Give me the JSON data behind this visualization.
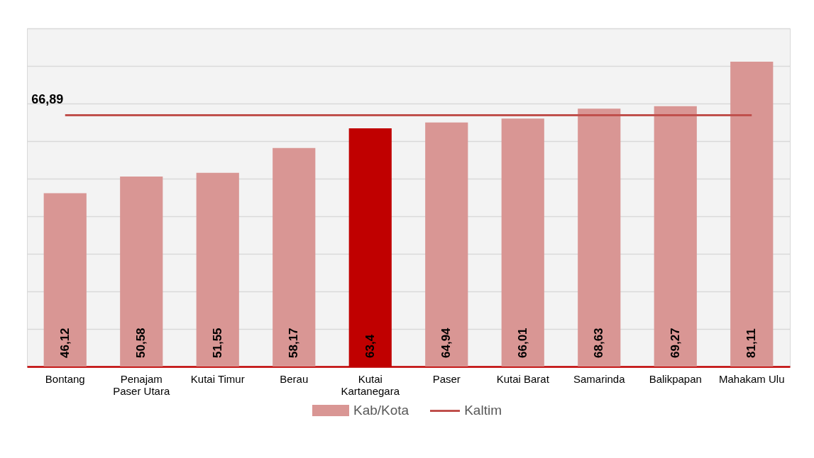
{
  "chart_data": {
    "type": "bar",
    "categories": [
      "Bontang",
      "Penajam Paser Utara",
      "Kutai Timur",
      "Berau",
      "Kutai Kartanegara",
      "Paser",
      "Kutai Barat",
      "Samarinda",
      "Balikpapan",
      "Mahakam Ulu"
    ],
    "series": [
      {
        "name": "Kab/Kota",
        "color": "#d99694",
        "colors": [
          "#d99694",
          "#d99694",
          "#d99694",
          "#d99694",
          "#c00000",
          "#d99694",
          "#d99694",
          "#d99694",
          "#d99694",
          "#d99694"
        ],
        "values": [
          46.12,
          50.58,
          51.55,
          58.17,
          63.4,
          64.94,
          66.01,
          68.63,
          69.27,
          81.11
        ],
        "value_labels": [
          "46,12",
          "50,58",
          "51,55",
          "58,17",
          "63,4",
          "64,94",
          "66,01",
          "68,63",
          "69,27",
          "81,11"
        ]
      },
      {
        "name": "Kaltim",
        "type": "line",
        "color": "#c0504d",
        "values": [
          66.89,
          66.89,
          66.89,
          66.89,
          66.89,
          66.89,
          66.89,
          66.89,
          66.89,
          66.89
        ],
        "value_labels": [
          "66,89",
          null,
          null,
          null,
          null,
          null,
          null,
          null,
          null,
          null
        ]
      }
    ],
    "ylim": [
      0,
      90
    ],
    "yticks": [
      0,
      10,
      20,
      30,
      40,
      50,
      60,
      70,
      80,
      90
    ],
    "tick_labels": "x",
    "grid": "y",
    "legend": "bottom",
    "marker": "none"
  }
}
